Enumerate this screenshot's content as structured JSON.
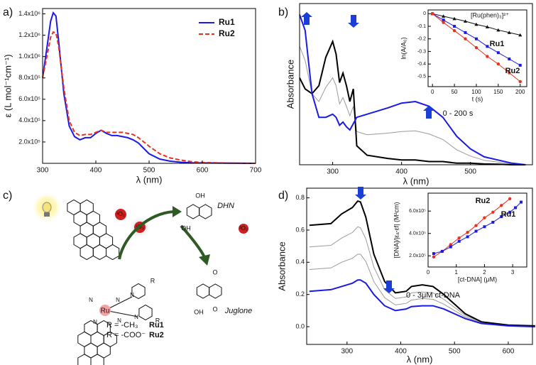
{
  "chart_data": [
    {
      "type": "line",
      "panel": "a)",
      "xlabel": "λ (nm)",
      "ylabel": "ε (L mol⁻¹cm⁻¹)",
      "x": [
        300,
        310,
        315,
        320,
        325,
        330,
        340,
        350,
        360,
        370,
        380,
        390,
        400,
        410,
        420,
        430,
        440,
        450,
        460,
        470,
        480,
        490,
        500,
        520,
        540,
        560,
        580,
        600,
        650,
        700
      ],
      "series": [
        {
          "name": "Ru1",
          "color": "#1a1ae6",
          "values": [
            800000,
            1150000,
            1330000,
            1410000,
            1380000,
            1150000,
            650000,
            350000,
            250000,
            220000,
            240000,
            240000,
            280000,
            310000,
            280000,
            260000,
            260000,
            250000,
            240000,
            220000,
            190000,
            140000,
            90000,
            40000,
            20000,
            10000,
            5000,
            3000,
            1000,
            0
          ]
        },
        {
          "name": "Ru2",
          "color": "#e8321e",
          "dash": true,
          "values": [
            800000,
            1050000,
            1180000,
            1230000,
            1220000,
            1100000,
            700000,
            400000,
            290000,
            260000,
            270000,
            270000,
            290000,
            310000,
            290000,
            290000,
            290000,
            290000,
            280000,
            270000,
            240000,
            200000,
            160000,
            90000,
            50000,
            30000,
            15000,
            8000,
            2000,
            0
          ]
        }
      ],
      "xlim": [
        300,
        700
      ],
      "ylim": [
        0,
        1450000
      ],
      "xticks": [
        300,
        400,
        500,
        600,
        700
      ],
      "yticks": [
        {
          "value": 200000,
          "label": "2.0x10⁵"
        },
        {
          "value": 400000,
          "label": "4.0x10⁵"
        },
        {
          "value": 600000,
          "label": "6.0x10⁵"
        },
        {
          "value": 800000,
          "label": "8.0x10⁵"
        },
        {
          "value": 1000000,
          "label": "1.0x10⁶"
        },
        {
          "value": 1200000,
          "label": "1.2x10⁶"
        },
        {
          "value": 1400000,
          "label": "1.4x10⁶"
        }
      ],
      "legend": "upper right"
    },
    {
      "type": "line",
      "panel": "b)",
      "xlabel": "λ (nm)",
      "ylabel": "Absorbance",
      "annotation": "0 - 200 s",
      "x": [
        252,
        260,
        270,
        280,
        290,
        300,
        305,
        310,
        315,
        320,
        325,
        330,
        335,
        350,
        380,
        400,
        420,
        440,
        460,
        480,
        500,
        520,
        540,
        560,
        580
      ],
      "series": [
        {
          "color": "#9a9a9a",
          "values": [
            0.75,
            0.66,
            0.45,
            0.4,
            0.49,
            0.55,
            0.5,
            0.385,
            0.425,
            0.37,
            0.31,
            0.37,
            0.21,
            0.19,
            0.2,
            0.21,
            0.215,
            0.195,
            0.16,
            0.095,
            0.055,
            0.028,
            0.017,
            0.005,
            0
          ]
        },
        {
          "color": "#000000",
          "values": [
            0.55,
            0.48,
            0.45,
            0.5,
            0.68,
            0.78,
            0.7,
            0.52,
            0.58,
            0.5,
            0.4,
            0.48,
            0.12,
            0.06,
            0.04,
            0.03,
            0.03,
            0.02,
            0.02,
            0.01,
            0.01,
            0.005,
            0.003,
            0,
            0
          ]
        },
        {
          "color": "#1a1ae6",
          "values": [
            0.95,
            0.85,
            0.45,
            0.3,
            0.3,
            0.32,
            0.3,
            0.25,
            0.27,
            0.24,
            0.22,
            0.26,
            0.3,
            0.32,
            0.36,
            0.39,
            0.4,
            0.37,
            0.3,
            0.18,
            0.1,
            0.05,
            0.03,
            0.01,
            0
          ]
        }
      ],
      "xlim": [
        252,
        590
      ],
      "ylim": [
        0,
        1.02
      ],
      "xticks": [
        300,
        400,
        500
      ]
    },
    {
      "type": "line",
      "xlabel": "t (s)",
      "ylabel": "ln(A/A₀)",
      "x": [
        0,
        25,
        50,
        75,
        100,
        125,
        150,
        175,
        200
      ],
      "series": [
        {
          "name": "[Ru(phen)₃]²⁺",
          "color": "#111111",
          "marker": "triangle",
          "values": [
            0,
            -0.02,
            -0.04,
            -0.06,
            -0.085,
            -0.105,
            -0.13,
            -0.15,
            -0.17
          ]
        },
        {
          "name": "Ru1",
          "color": "#1a1ae6",
          "marker": "square",
          "values": [
            0,
            -0.05,
            -0.1,
            -0.15,
            -0.2,
            -0.26,
            -0.31,
            -0.36,
            -0.41
          ]
        },
        {
          "name": "Ru2",
          "color": "#e8321e",
          "marker": "circle",
          "values": [
            0,
            -0.07,
            -0.135,
            -0.2,
            -0.27,
            -0.34,
            -0.4,
            -0.47,
            -0.54
          ]
        }
      ],
      "xlim": [
        -10,
        215
      ],
      "ylim": [
        -0.58,
        0.03
      ],
      "xticks": [
        0,
        50,
        100,
        150,
        200
      ],
      "yticks": [
        0,
        -0.1,
        -0.2,
        -0.3,
        -0.4,
        -0.5
      ]
    },
    {
      "type": "line",
      "panel": "d)",
      "xlabel": "λ (nm)",
      "ylabel": "Absorbance",
      "annotation": "0 - 3μM ct-DNA",
      "x": [
        230,
        270,
        290,
        310,
        320,
        325,
        335,
        350,
        370,
        390,
        410,
        420,
        440,
        460,
        480,
        500,
        520,
        550,
        600,
        650
      ],
      "series": [
        {
          "color": "#9a9a9a",
          "values": [
            0.355,
            0.365,
            0.4,
            0.425,
            0.45,
            0.45,
            0.405,
            0.28,
            0.18,
            0.135,
            0.145,
            0.165,
            0.175,
            0.17,
            0.14,
            0.1,
            0.06,
            0.023,
            0.007,
            0.002
          ]
        },
        {
          "color": "#9a9a9a",
          "values": [
            0.495,
            0.505,
            0.55,
            0.585,
            0.62,
            0.615,
            0.545,
            0.37,
            0.23,
            0.175,
            0.185,
            0.21,
            0.215,
            0.21,
            0.17,
            0.12,
            0.07,
            0.027,
            0.008,
            0.003
          ]
        },
        {
          "color": "#000000",
          "values": [
            0.63,
            0.64,
            0.7,
            0.74,
            0.78,
            0.775,
            0.68,
            0.45,
            0.28,
            0.21,
            0.22,
            0.25,
            0.26,
            0.25,
            0.2,
            0.14,
            0.08,
            0.03,
            0.01,
            0.005
          ]
        },
        {
          "color": "#1a1ae6",
          "values": [
            0.22,
            0.23,
            0.25,
            0.27,
            0.29,
            0.29,
            0.27,
            0.2,
            0.13,
            0.1,
            0.11,
            0.125,
            0.13,
            0.13,
            0.11,
            0.08,
            0.05,
            0.02,
            0.005,
            0
          ]
        }
      ],
      "xlim": [
        225,
        645
      ],
      "ylim": [
        -0.11,
        0.86
      ],
      "xticks": [
        300,
        400,
        500,
        600
      ],
      "yticks": [
        {
          "value": 0,
          "label": "0.0"
        },
        0.2,
        0.4,
        0.6,
        0.8
      ]
    },
    {
      "type": "line",
      "xlabel": "[ct-DNA] (μM)",
      "ylabel": "[DNA]/|εₐ-εf| (M²cm)",
      "series": [
        {
          "name": "Ru2",
          "color": "#e8321e",
          "marker": "circle",
          "x": [
            0.2,
            0.5,
            0.8,
            1.1,
            1.4,
            1.7,
            2.0,
            2.3,
            2.6,
            2.9
          ],
          "values": [
            190000,
            240000,
            300000,
            360000,
            410000,
            470000,
            540000,
            590000,
            650000,
            710000
          ]
        },
        {
          "name": "Ru1",
          "color": "#1a1ae6",
          "marker": "square",
          "x": [
            0.2,
            0.5,
            0.8,
            1.1,
            1.4,
            1.7,
            2.0,
            2.3,
            2.6,
            2.9,
            3.1,
            3.3
          ],
          "values": [
            220000,
            240000,
            280000,
            330000,
            370000,
            420000,
            460000,
            500000,
            550000,
            590000,
            630000,
            680000
          ]
        }
      ],
      "xlim": [
        0,
        3.5
      ],
      "ylim": [
        100000,
        760000
      ],
      "xticks": [
        0,
        1,
        2,
        3
      ],
      "yticks": [
        {
          "value": 200000,
          "label": "2.0x10⁵"
        },
        {
          "value": 400000,
          "label": "4.0x10⁵"
        },
        {
          "value": 600000,
          "label": "6.0x10⁵"
        }
      ]
    }
  ],
  "scheme": {
    "panel": "c)",
    "metal": "Ru",
    "nitrogen": "N",
    "substituent": "R",
    "triplet_oxygen": "³O₂",
    "singlet_oxygen": "¹O₂",
    "dhn": {
      "name": "DHN",
      "oh": "OH"
    },
    "juglone": {
      "name": "Juglone",
      "oh": "OH",
      "oxo": "O"
    },
    "definitions": [
      {
        "text": "R = -CH₃",
        "complex": "Ru1"
      },
      {
        "text": "R = -COO⁻",
        "complex": "Ru2"
      }
    ]
  }
}
